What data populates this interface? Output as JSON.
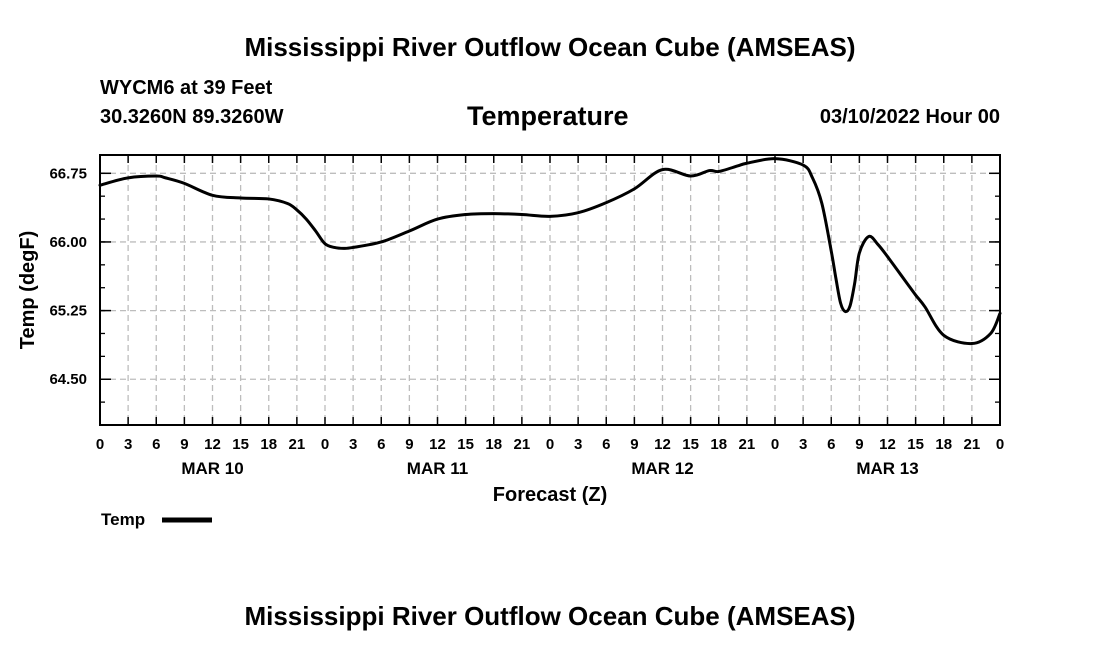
{
  "header": {
    "title": "Mississippi River Outflow Ocean Cube (AMSEAS)",
    "station": "WYCM6 at 39 Feet",
    "coords": "30.3260N  89.3260W",
    "datetime": "03/10/2022 Hour 00"
  },
  "footer": {
    "title": "Mississippi River Outflow Ocean Cube (AMSEAS)"
  },
  "chart_data": {
    "type": "line",
    "title": "Temperature",
    "xlabel": "Forecast (Z)",
    "ylabel": "Temp (degF)",
    "xlim": [
      0,
      96
    ],
    "ylim": [
      64.0,
      66.95
    ],
    "yticks": [
      64.5,
      65.25,
      66.0,
      66.75
    ],
    "ytick_labels": [
      "64.50",
      "65.25",
      "66.00",
      "66.75"
    ],
    "xticks": [
      0,
      3,
      6,
      9,
      12,
      15,
      18,
      21,
      24,
      27,
      30,
      33,
      36,
      39,
      42,
      45,
      48,
      51,
      54,
      57,
      60,
      63,
      66,
      69,
      72,
      75,
      78,
      81,
      84,
      87,
      90,
      93,
      96
    ],
    "xtick_labels": [
      "0",
      "3",
      "6",
      "9",
      "12",
      "15",
      "18",
      "21",
      "0",
      "3",
      "6",
      "9",
      "12",
      "15",
      "18",
      "21",
      "0",
      "3",
      "6",
      "9",
      "12",
      "15",
      "18",
      "21",
      "0",
      "3",
      "6",
      "9",
      "12",
      "15",
      "18",
      "21",
      "0"
    ],
    "day_labels": [
      {
        "hour": 12,
        "label": "MAR 10"
      },
      {
        "hour": 36,
        "label": "MAR 11"
      },
      {
        "hour": 60,
        "label": "MAR 12"
      },
      {
        "hour": 84,
        "label": "MAR 13"
      }
    ],
    "grid": true,
    "series": [
      {
        "name": "Temp",
        "x": [
          0,
          3,
          6,
          7,
          9,
          12,
          15,
          18,
          20,
          21,
          22,
          23,
          24,
          25,
          26,
          27,
          30,
          33,
          36,
          39,
          42,
          45,
          48,
          51,
          54,
          57,
          60,
          63,
          65,
          66,
          68,
          69,
          72,
          75,
          76,
          77,
          78,
          78.5,
          79,
          79.5,
          80,
          80.5,
          81,
          82,
          83,
          84,
          85,
          86,
          87,
          88,
          90,
          93,
          95,
          96
        ],
        "y": [
          66.62,
          66.7,
          66.72,
          66.7,
          66.64,
          66.51,
          66.48,
          66.47,
          66.42,
          66.35,
          66.25,
          66.12,
          65.98,
          65.94,
          65.93,
          65.94,
          66.0,
          66.12,
          66.25,
          66.3,
          66.31,
          66.3,
          66.28,
          66.32,
          66.43,
          66.58,
          66.79,
          66.72,
          66.78,
          66.77,
          66.83,
          66.86,
          66.91,
          66.84,
          66.7,
          66.42,
          65.9,
          65.6,
          65.33,
          65.24,
          65.3,
          65.55,
          65.88,
          66.06,
          65.97,
          65.84,
          65.7,
          65.56,
          65.42,
          65.29,
          64.98,
          64.89,
          65.0,
          65.22
        ]
      }
    ],
    "legend": {
      "label": "Temp",
      "placement": "bottom-left"
    }
  }
}
